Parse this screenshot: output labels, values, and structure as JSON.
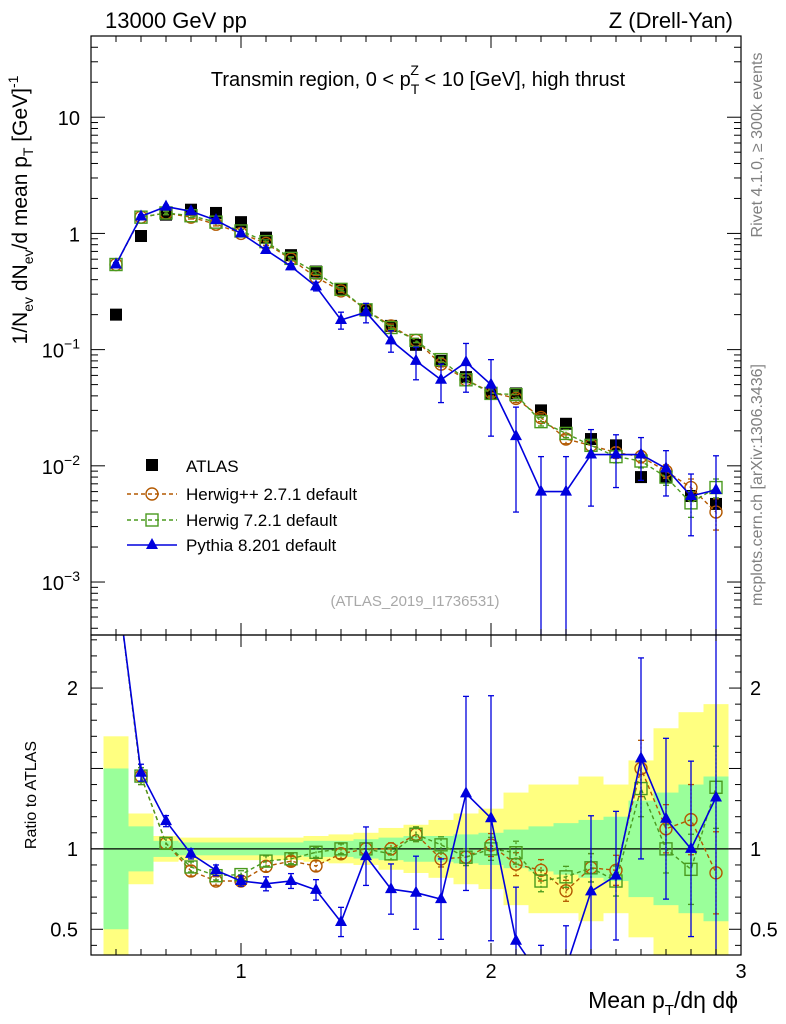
{
  "chart_data": {
    "type": "scatter",
    "header": {
      "left": "13000 GeV pp",
      "right": "Z (Drell-Yan)",
      "side_rivet": "Rivet 4.1.0, ≥ 300k events",
      "side_mcplots": "mcplots.cern.ch [arXiv:1306.3436]"
    },
    "title": {
      "prefix": "Transmin region, 0 < p",
      "sub": "T",
      "sup": "Z",
      "suffix": " < 10 [GeV], high thrust"
    },
    "watermark": "(ATLAS_2019_I1736531)",
    "xlabel": {
      "part1": "Mean p",
      "sub": "T",
      "part2": "/dη dϕ"
    },
    "ylabel": {
      "p1": "1/N",
      "sub1": "ev",
      "p2": " dN",
      "sub2": "ev",
      "p3": "/d mean p",
      "sub3": "T",
      "p4": " [GeV]",
      "sup4": "-1"
    },
    "ratio_ylabel": "Ratio to ATLAS",
    "xlim": [
      0.4,
      3.0
    ],
    "ylim": [
      0.00035,
      50
    ],
    "ratio_ylim": [
      0.34,
      2.33
    ],
    "x_ticks": [
      {
        "v": 1,
        "label": "1"
      },
      {
        "v": 2,
        "label": "2"
      },
      {
        "v": 3,
        "label": "3"
      }
    ],
    "y_ticks": [
      {
        "v": 0.001,
        "b": "10",
        "e": "−3"
      },
      {
        "v": 0.01,
        "b": "10",
        "e": "−2"
      },
      {
        "v": 0.1,
        "b": "10",
        "e": "−1"
      },
      {
        "v": 1,
        "b": "1",
        "e": ""
      },
      {
        "v": 10,
        "b": "10",
        "e": ""
      }
    ],
    "ratio_ticks": [
      {
        "v": 0.5,
        "label": "0.5"
      },
      {
        "v": 1,
        "label": "1"
      },
      {
        "v": 2,
        "label": "2"
      }
    ],
    "bin_edges": [
      0.45,
      0.55,
      0.65,
      0.75,
      0.85,
      0.95,
      1.05,
      1.15,
      1.25,
      1.35,
      1.45,
      1.55,
      1.65,
      1.75,
      1.85,
      1.95,
      2.05,
      2.15,
      2.25,
      2.35,
      2.45,
      2.55,
      2.65,
      2.75,
      2.85,
      2.95
    ],
    "x": [
      0.5,
      0.6,
      0.7,
      0.8,
      0.9,
      1.0,
      1.1,
      1.2,
      1.3,
      1.4,
      1.5,
      1.6,
      1.7,
      1.8,
      1.9,
      2.0,
      2.1,
      2.2,
      2.3,
      2.4,
      2.5,
      2.6,
      2.7,
      2.8,
      2.9
    ],
    "band_stat": [
      0.5,
      0.14,
      0.05,
      0.04,
      0.04,
      0.04,
      0.04,
      0.04,
      0.05,
      0.05,
      0.06,
      0.07,
      0.08,
      0.08,
      0.09,
      0.1,
      0.12,
      0.14,
      0.16,
      0.18,
      0.2,
      0.3,
      0.35,
      0.4,
      0.45
    ],
    "band_total": [
      0.7,
      0.22,
      0.08,
      0.07,
      0.07,
      0.07,
      0.07,
      0.07,
      0.08,
      0.09,
      0.1,
      0.13,
      0.15,
      0.18,
      0.22,
      0.25,
      0.35,
      0.4,
      0.4,
      0.45,
      0.4,
      0.55,
      0.75,
      0.85,
      0.9
    ],
    "legend": {
      "placement": "lower-left"
    },
    "series": [
      {
        "name": "ATLAS",
        "style": "data",
        "color": "#000000",
        "values": [
          0.2,
          0.95,
          1.45,
          1.6,
          1.5,
          1.25,
          0.92,
          0.65,
          0.47,
          0.33,
          0.22,
          0.16,
          0.11,
          0.08,
          0.058,
          0.042,
          0.042,
          0.03,
          0.023,
          0.017,
          0.015,
          0.008,
          0.008,
          0.0055,
          0.0047
        ]
      },
      {
        "name": "Herwig++ 2.7.1 default",
        "style": "circle",
        "color": "#b35900",
        "values": [
          0.54,
          1.38,
          1.5,
          1.38,
          1.2,
          1.0,
          0.82,
          0.6,
          0.42,
          0.32,
          0.22,
          0.16,
          0.12,
          0.075,
          0.055,
          0.043,
          0.038,
          0.026,
          0.017,
          0.015,
          0.013,
          0.012,
          0.009,
          0.0065,
          0.004
        ],
        "errors": [
          0.02,
          0.05,
          0.05,
          0.05,
          0.04,
          0.03,
          0.03,
          0.02,
          0.015,
          0.01,
          0.008,
          0.006,
          0.005,
          0.004,
          0.003,
          0.003,
          0.003,
          0.002,
          0.0015,
          0.0015,
          0.0014,
          0.0014,
          0.0012,
          0.0012,
          0.0012
        ]
      },
      {
        "name": "Herwig 7.2.1 default",
        "style": "square",
        "color": "#4a9a1e",
        "values": [
          0.54,
          1.38,
          1.5,
          1.42,
          1.25,
          1.05,
          0.85,
          0.61,
          0.46,
          0.33,
          0.22,
          0.155,
          0.12,
          0.082,
          0.055,
          0.042,
          0.041,
          0.024,
          0.019,
          0.015,
          0.012,
          0.011,
          0.008,
          0.0048,
          0.0065
        ],
        "errors": [
          0.02,
          0.05,
          0.05,
          0.05,
          0.04,
          0.03,
          0.03,
          0.02,
          0.015,
          0.01,
          0.008,
          0.006,
          0.005,
          0.004,
          0.003,
          0.003,
          0.003,
          0.002,
          0.0015,
          0.0015,
          0.0014,
          0.0014,
          0.0012,
          0.0012,
          0.0012
        ]
      },
      {
        "name": "Pythia 8.201 default",
        "style": "triangle",
        "color": "#0000dd",
        "values": [
          0.54,
          1.4,
          1.7,
          1.55,
          1.3,
          1.0,
          0.72,
          0.52,
          0.35,
          0.18,
          0.21,
          0.12,
          0.08,
          0.055,
          0.078,
          0.05,
          0.018,
          0.006,
          0.006,
          0.0125,
          0.0125,
          0.0125,
          0.0095,
          0.0055,
          0.0062
        ],
        "err_lo": [
          0.02,
          0.05,
          0.05,
          0.05,
          0.05,
          0.04,
          0.04,
          0.03,
          0.03,
          0.03,
          0.04,
          0.025,
          0.025,
          0.02,
          0.035,
          0.032,
          0.014,
          0.006,
          0.006,
          0.008,
          0.006,
          0.005,
          0.004,
          0.003,
          0.0062
        ],
        "err_hi": [
          0.02,
          0.05,
          0.05,
          0.05,
          0.05,
          0.04,
          0.04,
          0.03,
          0.03,
          0.03,
          0.04,
          0.025,
          0.025,
          0.02,
          0.035,
          0.032,
          0.014,
          0.006,
          0.006,
          0.008,
          0.006,
          0.005,
          0.004,
          0.003,
          0.006
        ]
      }
    ]
  }
}
